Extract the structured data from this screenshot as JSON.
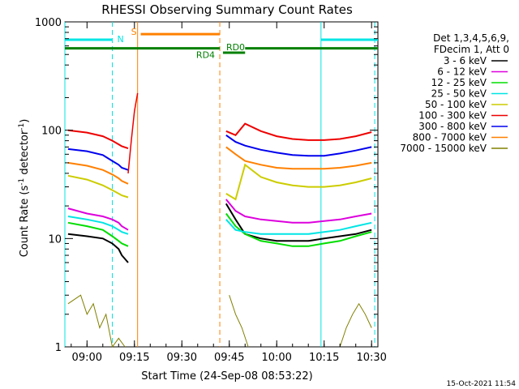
{
  "chart_data": {
    "type": "line",
    "title": "RHESSI Observing Summary Count Rates",
    "xlabel": "Start Time (24-Sep-08 08:53:22)",
    "ylabel": "Count Rate (s",
    "ylabel_sup1": "-1",
    "ylabel_mid": " detector",
    "ylabel_sup2": "-1",
    "ylabel_end": ")",
    "y_scale": "log",
    "ylim": [
      1,
      1000
    ],
    "xlim": [
      "08:53",
      "10:32"
    ],
    "x_ticks": [
      "09:00",
      "09:15",
      "09:30",
      "09:45",
      "10:00",
      "10:15",
      "10:30"
    ],
    "y_ticks": [
      "1",
      "10",
      "100",
      "1000"
    ],
    "footer_date": "15-Oct-2021 11:54",
    "legend": {
      "header": [
        "Det 1,3,4,5,6,9,",
        "FDecim 1, Att 0"
      ],
      "placement": "right"
    },
    "series": [
      {
        "name": "3 - 6 keV",
        "color": "#000000",
        "segments": [
          {
            "x": [
              "08:54",
              "09:00",
              "09:05",
              "09:08",
              "09:10",
              "09:11",
              "09:13"
            ],
            "y": [
              11,
              10.5,
              10,
              9,
              8,
              7,
              6
            ]
          },
          {
            "x": [
              "09:44",
              "09:47",
              "09:50",
              "09:55",
              "10:00",
              "10:05",
              "10:10",
              "10:15",
              "10:20",
              "10:25",
              "10:30"
            ],
            "y": [
              21,
              15,
              11,
              10,
              9.5,
              9.5,
              9.5,
              10,
              10.5,
              11,
              12
            ]
          }
        ]
      },
      {
        "name": "6 - 12 keV",
        "color": "#dd00dd",
        "segments": [
          {
            "x": [
              "08:54",
              "09:00",
              "09:05",
              "09:08",
              "09:10",
              "09:11",
              "09:13"
            ],
            "y": [
              19,
              17,
              16,
              15,
              14,
              13,
              12
            ]
          },
          {
            "x": [
              "09:44",
              "09:47",
              "09:50",
              "09:55",
              "10:00",
              "10:05",
              "10:10",
              "10:15",
              "10:20",
              "10:25",
              "10:30"
            ],
            "y": [
              23,
              18,
              16,
              15,
              14.5,
              14,
              14,
              14.5,
              15,
              16,
              17
            ]
          }
        ]
      },
      {
        "name": "12 - 25 keV",
        "color": "#00dd00",
        "segments": [
          {
            "x": [
              "08:54",
              "09:00",
              "09:05",
              "09:08",
              "09:10",
              "09:11",
              "09:13"
            ],
            "y": [
              14,
              13,
              12,
              10.5,
              9.5,
              9,
              8.5
            ]
          },
          {
            "x": [
              "09:44",
              "09:47",
              "09:50",
              "09:55",
              "10:00",
              "10:05",
              "10:10",
              "10:15",
              "10:20",
              "10:25",
              "10:30"
            ],
            "y": [
              17,
              13,
              11,
              9.5,
              9,
              8.5,
              8.5,
              9,
              9.5,
              10.5,
              11.5
            ]
          }
        ]
      },
      {
        "name": "25 - 50 keV",
        "color": "#00e5e5",
        "segments": [
          {
            "x": [
              "08:54",
              "09:00",
              "09:05",
              "09:08",
              "09:10",
              "09:11",
              "09:13"
            ],
            "y": [
              16,
              15,
              14,
              13,
              12,
              11.5,
              11
            ]
          },
          {
            "x": [
              "09:44",
              "09:47",
              "09:50",
              "09:55",
              "10:00",
              "10:05",
              "10:10",
              "10:15",
              "10:20",
              "10:25",
              "10:30"
            ],
            "y": [
              15,
              12,
              11.5,
              11,
              11,
              11,
              11,
              11.5,
              12,
              13,
              14
            ]
          }
        ]
      },
      {
        "name": "50 - 100 keV",
        "color": "#cccc00",
        "segments": [
          {
            "x": [
              "08:54",
              "09:00",
              "09:05",
              "09:08",
              "09:10",
              "09:11",
              "09:13"
            ],
            "y": [
              38,
              35,
              31,
              28,
              26,
              25,
              24
            ]
          },
          {
            "x": [
              "09:44",
              "09:47",
              "09:50",
              "09:55",
              "10:00",
              "10:05",
              "10:10",
              "10:15",
              "10:20",
              "10:25",
              "10:30"
            ],
            "y": [
              26,
              23,
              48,
              37,
              33,
              31,
              30,
              30,
              31,
              33,
              36
            ]
          }
        ]
      },
      {
        "name": "100 - 300 keV",
        "color": "#ee0000",
        "segments": [
          {
            "x": [
              "08:54",
              "09:00",
              "09:05",
              "09:08",
              "09:10",
              "09:11",
              "09:13"
            ],
            "y": [
              100,
              95,
              88,
              80,
              74,
              71,
              68
            ]
          },
          {
            "x": [
              "09:44",
              "09:47",
              "09:50",
              "09:55",
              "10:00",
              "10:05",
              "10:10",
              "10:15",
              "10:20",
              "10:25",
              "10:30"
            ],
            "y": [
              98,
              90,
              115,
              98,
              88,
              83,
              81,
              81,
              83,
              88,
              96
            ]
          }
        ]
      },
      {
        "name": "300 - 800 keV",
        "color": "#0000ee",
        "segments": [
          {
            "x": [
              "08:54",
              "09:00",
              "09:05",
              "09:08",
              "09:10",
              "09:11",
              "09:13"
            ],
            "y": [
              67,
              64,
              59,
              52,
              48,
              45,
              43
            ]
          },
          {
            "x": [
              "09:44",
              "09:47",
              "09:50",
              "09:55",
              "10:00",
              "10:05",
              "10:10",
              "10:15",
              "10:20",
              "10:25",
              "10:30"
            ],
            "y": [
              90,
              78,
              72,
              66,
              62,
              59,
              58,
              58,
              61,
              65,
              70
            ]
          }
        ]
      },
      {
        "name": "800 - 7000 keV",
        "color": "#ff8000",
        "segments": [
          {
            "x": [
              "08:54",
              "09:00",
              "09:05",
              "09:08",
              "09:10",
              "09:11",
              "09:13"
            ],
            "y": [
              50,
              47,
              43,
              39,
              36,
              34,
              32
            ]
          },
          {
            "x": [
              "09:44",
              "09:47",
              "09:50",
              "09:55",
              "10:00",
              "10:05",
              "10:10",
              "10:15",
              "10:20",
              "10:25",
              "10:30"
            ],
            "y": [
              70,
              60,
              52,
              48,
              45,
              44,
              44,
              44,
              45,
              47,
              50
            ]
          }
        ]
      },
      {
        "name": "7000 - 15000 keV",
        "color": "#808000",
        "segments": [
          {
            "x": [
              "08:54",
              "08:58",
              "09:00",
              "09:02",
              "09:04",
              "09:06",
              "09:08",
              "09:10",
              "09:12"
            ],
            "y": [
              2.5,
              3,
              2,
              2.5,
              1.5,
              2,
              1,
              1.2,
              1
            ]
          },
          {
            "x": [
              "09:45",
              "09:47",
              "09:49",
              "09:51"
            ],
            "y": [
              3,
              2,
              1.5,
              1
            ]
          },
          {
            "x": [
              "10:20",
              "10:22",
              "10:24",
              "10:26",
              "10:28",
              "10:30"
            ],
            "y": [
              1,
              1.5,
              2,
              2.5,
              2,
              1.5
            ]
          }
        ]
      }
    ],
    "flare": {
      "x": [
        "09:13",
        "09:14",
        "09:15",
        "09:16"
      ],
      "y": [
        40,
        80,
        150,
        220
      ]
    },
    "saa_bars": [
      {
        "start": "08:53",
        "end": "09:08",
        "color": "#00e5e5",
        "label": "N"
      },
      {
        "start": "10:14",
        "end": "10:32",
        "color": "#00e5e5",
        "label": ""
      }
    ],
    "flag_bars": [
      {
        "start": "09:17",
        "end": "09:42",
        "color": "#ff8000",
        "label": "S",
        "y": 770
      },
      {
        "start": "08:53",
        "end": "09:42",
        "color": "#008000",
        "label": "RD4",
        "y": 570
      },
      {
        "start": "09:43",
        "end": "09:50",
        "color": "#008000",
        "label": "RD0",
        "y": 520
      },
      {
        "start": "09:50",
        "end": "10:32",
        "color": "#008000",
        "label": "",
        "y": 570
      }
    ],
    "vertical_lines": [
      {
        "x": "09:08",
        "color": "#00e5e5",
        "style": "dashed"
      },
      {
        "x": "09:16",
        "color": "#ff8000",
        "style": "solid"
      },
      {
        "x": "09:42",
        "color": "#ff8000",
        "style": "dashed"
      },
      {
        "x": "10:14",
        "color": "#00e5e5",
        "style": "solid"
      },
      {
        "x": "10:31",
        "color": "#00e5e5",
        "style": "dashed"
      },
      {
        "x": "08:53",
        "color": "#00e5e5",
        "style": "solid"
      }
    ],
    "grid": false
  }
}
